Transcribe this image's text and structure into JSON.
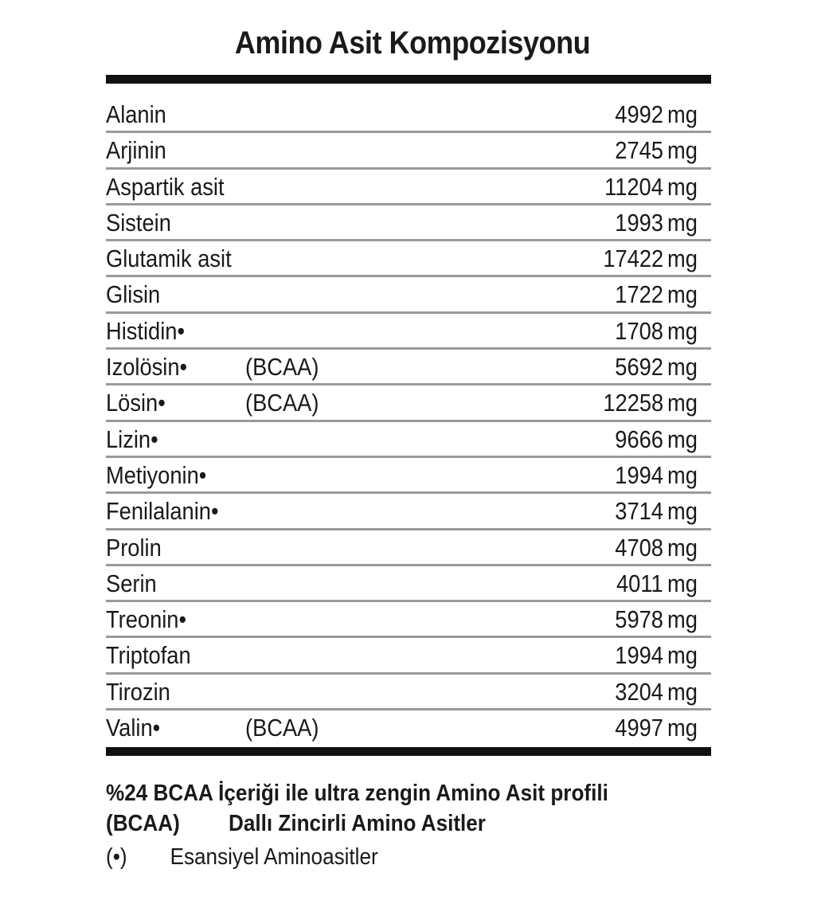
{
  "title": "Amino Asit Kompozisyonu",
  "unit": "mg",
  "rows": [
    {
      "name": "Alanin",
      "tag": "",
      "value": "4992"
    },
    {
      "name": "Arjinin",
      "tag": "",
      "value": "2745"
    },
    {
      "name": "Aspartik asit",
      "tag": "",
      "value": "11204"
    },
    {
      "name": "Sistein",
      "tag": "",
      "value": "1993"
    },
    {
      "name": "Glutamik asit",
      "tag": "",
      "value": "17422"
    },
    {
      "name": "Glisin",
      "tag": "",
      "value": "1722"
    },
    {
      "name": "Histidin•",
      "tag": "",
      "value": "1708"
    },
    {
      "name": "Izolösin•",
      "tag": "(BCAA)",
      "value": "5692"
    },
    {
      "name": "Lösin•",
      "tag": "(BCAA)",
      "value": "12258"
    },
    {
      "name": "Lizin•",
      "tag": "",
      "value": "9666"
    },
    {
      "name": "Metiyonin•",
      "tag": "",
      "value": "1994"
    },
    {
      "name": "Fenilalanin•",
      "tag": "",
      "value": "3714"
    },
    {
      "name": "Prolin",
      "tag": "",
      "value": "4708"
    },
    {
      "name": "Serin",
      "tag": "",
      "value": "4011"
    },
    {
      "name": "Treonin•",
      "tag": "",
      "value": "5978"
    },
    {
      "name": "Triptofan",
      "tag": "",
      "value": "1994"
    },
    {
      "name": "Tirozin",
      "tag": "",
      "value": "3204"
    },
    {
      "name": "Valin•",
      "tag": "(BCAA)",
      "value": "4997"
    }
  ],
  "footer": {
    "line1": "%24 BCAA İçeriği ile ultra zengin Amino Asit profili",
    "bcaa_key": "(BCAA)",
    "bcaa_desc": "Dallı Zincirli Amino Asitler",
    "essential_key": "(•)",
    "essential_desc": "Esansiyel Aminoasitler"
  }
}
